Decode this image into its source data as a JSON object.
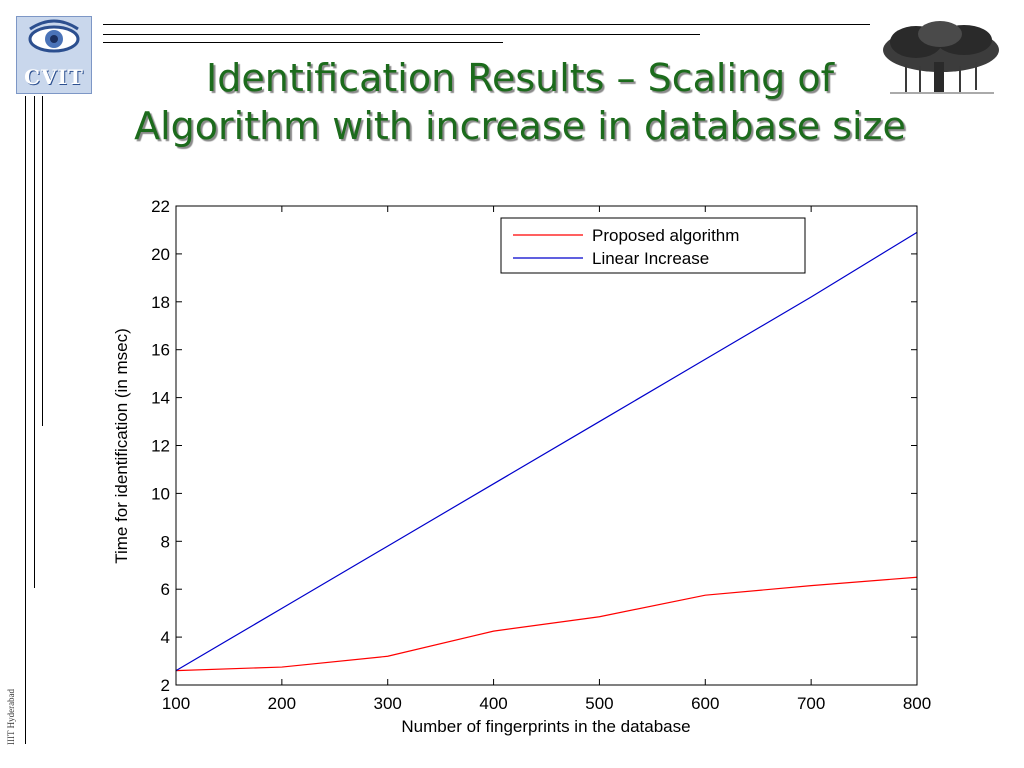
{
  "slide": {
    "title_line1": "Identification Results – Scaling of",
    "title_line2": "Algorithm with increase in database size",
    "logo_text": "CVIT",
    "side_text": "IIIT Hyderabad",
    "title_color": "#1c6b1c"
  },
  "chart_data": {
    "type": "line",
    "title": "",
    "xlabel": "Number of fingerprints in the database",
    "ylabel": "Time for identification (in msec)",
    "xlim": [
      100,
      800
    ],
    "ylim": [
      2,
      22
    ],
    "xticks": [
      100,
      200,
      300,
      400,
      500,
      600,
      700,
      800
    ],
    "yticks": [
      2,
      4,
      6,
      8,
      10,
      12,
      14,
      16,
      18,
      20,
      22
    ],
    "grid": false,
    "legend_position": "top-right",
    "x": [
      100,
      200,
      300,
      400,
      500,
      600,
      700,
      800
    ],
    "series": [
      {
        "name": "Proposed algorithm",
        "color": "#ff0000",
        "values": [
          2.6,
          2.75,
          3.2,
          4.25,
          4.85,
          5.75,
          6.15,
          6.5
        ]
      },
      {
        "name": "Linear Increase",
        "color": "#0000cc",
        "values": [
          2.6,
          5.2,
          7.8,
          10.4,
          13.0,
          15.6,
          18.2,
          20.9
        ]
      }
    ]
  }
}
